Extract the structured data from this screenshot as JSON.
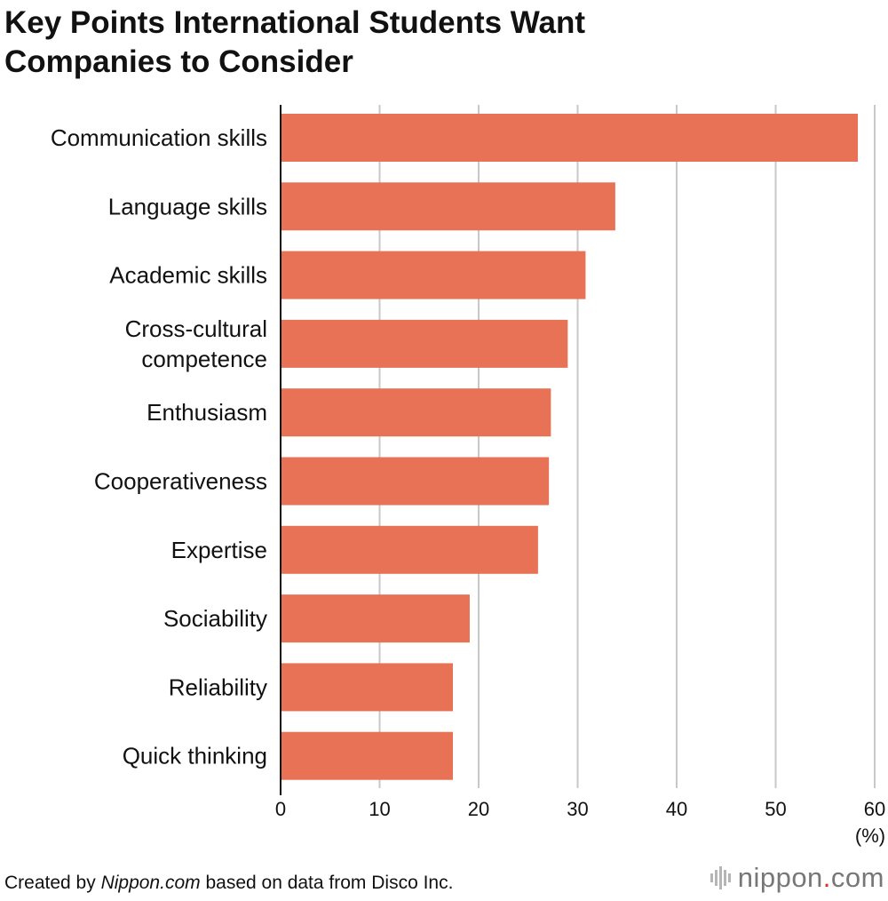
{
  "chart_data": {
    "type": "bar",
    "orientation": "horizontal",
    "title_lines": [
      "Key Points International Students Want",
      "Companies to Consider"
    ],
    "categories": [
      [
        "Communication skills"
      ],
      [
        "Language skills"
      ],
      [
        "Academic skills"
      ],
      [
        "Cross-cultural",
        "competence"
      ],
      [
        "Enthusiasm"
      ],
      [
        "Cooperativeness"
      ],
      [
        "Expertise"
      ],
      [
        "Sociability"
      ],
      [
        "Reliability"
      ],
      [
        "Quick thinking"
      ]
    ],
    "values": [
      58.3,
      33.8,
      30.8,
      29.0,
      27.3,
      27.1,
      26.0,
      19.1,
      17.4,
      17.4
    ],
    "xlim": [
      0,
      60
    ],
    "xticks": [
      "0",
      "10",
      "20",
      "30",
      "40",
      "50",
      "60"
    ],
    "unit": "(%)",
    "bar_color": "#e87256",
    "grid": true
  },
  "footer": {
    "prefix": "Created by ",
    "source_italic": "Nippon.com",
    "suffix": " based on data from Disco Inc."
  },
  "brand": {
    "name": "nippon",
    "dot": ".",
    "tld": "com"
  }
}
